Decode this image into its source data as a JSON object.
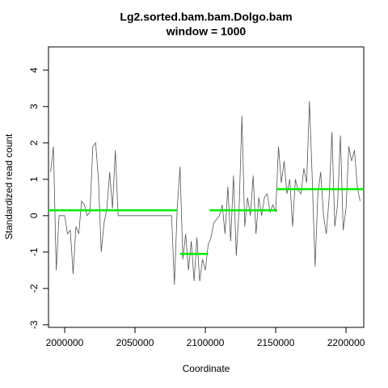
{
  "chart_data": {
    "type": "line",
    "title": "Lg2.sorted.bam.bam.Dolgo.bam",
    "subtitle": "window = 1000",
    "x_label": "Coordinate",
    "y_label": "Standardized read count",
    "xlim": [
      1988500,
      2212600
    ],
    "ylim": [
      -3.07,
      4.64
    ],
    "xticks": [
      2000000,
      2050000,
      2100000,
      2150000,
      2200000
    ],
    "yticks": [
      -3,
      -2,
      -1,
      0,
      1,
      2,
      3,
      4
    ],
    "x": [
      1990000,
      1992000,
      1994000,
      1996000,
      1998000,
      2000000,
      2002000,
      2004000,
      2006000,
      2008000,
      2010000,
      2012000,
      2014000,
      2016000,
      2018000,
      2020000,
      2022000,
      2024000,
      2026000,
      2028000,
      2030000,
      2032000,
      2034000,
      2036000,
      2038000,
      2040000,
      2042000,
      2044000,
      2046000,
      2048000,
      2050000,
      2052000,
      2054000,
      2056000,
      2058000,
      2060000,
      2062000,
      2064000,
      2066000,
      2068000,
      2070000,
      2072000,
      2074000,
      2076000,
      2078000,
      2080000,
      2082000,
      2084000,
      2086000,
      2088000,
      2090000,
      2092000,
      2094000,
      2096000,
      2098000,
      2100000,
      2102000,
      2104000,
      2106000,
      2108000,
      2110000,
      2112000,
      2114000,
      2116000,
      2118000,
      2120000,
      2122000,
      2124000,
      2126000,
      2128000,
      2130000,
      2132000,
      2134000,
      2136000,
      2138000,
      2140000,
      2142000,
      2144000,
      2146000,
      2148000,
      2150000,
      2152000,
      2154000,
      2156000,
      2158000,
      2160000,
      2162000,
      2164000,
      2166000,
      2168000,
      2170000,
      2172000,
      2174000,
      2176000,
      2178000,
      2180000,
      2182000,
      2184000,
      2186000,
      2188000,
      2190000,
      2192000,
      2194000,
      2196000,
      2198000,
      2200000,
      2202000,
      2204000,
      2206000,
      2208000,
      2210000
    ],
    "series": [
      {
        "color": "#555555",
        "values": [
          1.2,
          1.9,
          -1.5,
          0,
          0,
          0,
          -0.5,
          -0.4,
          -1.6,
          -0.3,
          -0.5,
          0.4,
          0.3,
          0,
          0.1,
          1.9,
          2.0,
          1.0,
          -1.0,
          -0.2,
          0.2,
          1.2,
          0.2,
          1.8,
          0,
          0,
          0,
          0,
          0,
          0,
          0,
          0,
          0,
          0,
          0,
          0,
          0,
          0,
          0,
          0,
          0,
          0,
          0,
          0,
          -1.9,
          0.2,
          1.35,
          -1.2,
          -0.5,
          -1.5,
          -0.7,
          -1.8,
          -0.6,
          -1.8,
          -1.2,
          -1.5,
          -0.8,
          -0.6,
          -0.2,
          -0.1,
          0,
          0.3,
          -0.5,
          0.8,
          -0.7,
          1.1,
          -1.1,
          0.2,
          2.75,
          -0.3,
          0.5,
          0,
          1.1,
          -0.5,
          0.5,
          0,
          0.5,
          0.6,
          0.1,
          0.3,
          0.1,
          1.9,
          0.9,
          1.5,
          0.6,
          1.0,
          -0.3,
          1.0,
          0.7,
          0.6,
          1.3,
          0.9,
          3.15,
          1.0,
          -1.4,
          0.6,
          1.2,
          0,
          -0.5,
          0.5,
          2.3,
          -0.3,
          0.3,
          2.2,
          -0.4,
          0.2,
          1.9,
          1.5,
          1.8,
          0.8,
          0.4
        ]
      }
    ],
    "segment_color": "#00ee00",
    "segments": [
      {
        "x0": 1988500,
        "x1": 2080000,
        "y": 0.15
      },
      {
        "x0": 2082000,
        "x1": 2102000,
        "y": -1.05
      },
      {
        "x0": 2103000,
        "x1": 2151000,
        "y": 0.15
      },
      {
        "x0": 2151000,
        "x1": 2212600,
        "y": 0.73
      }
    ]
  }
}
